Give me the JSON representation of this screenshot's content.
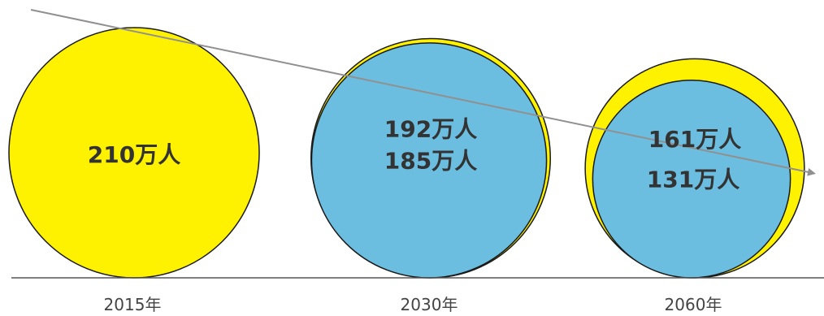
{
  "chart_data": {
    "type": "bubble",
    "title": "",
    "xlabel": "",
    "ylabel": "",
    "categories": [
      "2015年",
      "2030年",
      "2060年"
    ],
    "series": [
      {
        "values": [
          210,
          192,
          161
        ],
        "labels": [
          "210万人",
          "192万人",
          "161万人"
        ]
      },
      {
        "values": [
          null,
          185,
          131
        ],
        "labels": [
          "",
          "185万人",
          "131万人"
        ]
      }
    ],
    "colors": {
      "outer": "#FFF200",
      "inner": "#6CBEE0",
      "stroke": "#1a1a1a",
      "arrow": "#909090"
    },
    "trend_arrow": true
  }
}
